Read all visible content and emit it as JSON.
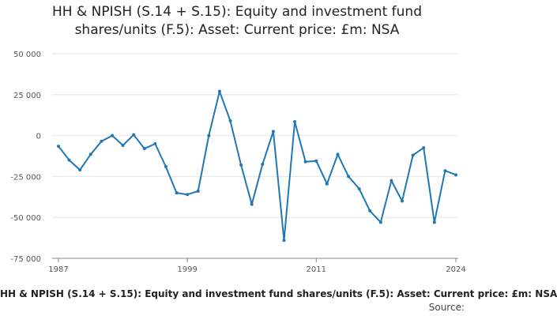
{
  "chart_data": {
    "type": "line",
    "title_lines": [
      "HH & NPISH (S.14 + S.15): Equity and investment fund",
      "shares/units (F.5): Asset: Current price: £m: NSA"
    ],
    "x_label": "HH & NPISH (S.14 + S.15): Equity and investment fund shares/units (F.5): Asset: Current price: £m: NSA",
    "source_label": "Source:",
    "ylim": [
      -75000,
      50000
    ],
    "y_ticks": [
      50000,
      25000,
      0,
      -25000,
      -50000,
      -75000
    ],
    "y_tick_labels": [
      "50 000",
      "25 000",
      "0",
      "-25 000",
      "-50 000",
      "-75 000"
    ],
    "x_tick_years": [
      1987,
      1999,
      2011,
      2024
    ],
    "x_tick_labels": [
      "1987",
      "1999",
      "2011",
      "2024"
    ],
    "grid": true,
    "series_color": "#1f78b4",
    "x": [
      1987,
      1988,
      1989,
      1990,
      1991,
      1992,
      1993,
      1994,
      1995,
      1996,
      1997,
      1998,
      1999,
      2000,
      2001,
      2002,
      2003,
      2004,
      2005,
      2006,
      2007,
      2008,
      2009,
      2010,
      2011,
      2012,
      2013,
      2014,
      2015,
      2016,
      2017,
      2018,
      2019,
      2020,
      2021,
      2022,
      2023,
      2024
    ],
    "values": [
      -6500,
      -15000,
      -21000,
      -11500,
      -3500,
      0,
      -6000,
      500,
      -8000,
      -5000,
      -19000,
      -35000,
      -36000,
      -34000,
      0,
      27000,
      9000,
      -18000,
      -42000,
      -17500,
      2500,
      -64000,
      8500,
      -16000,
      -15500,
      -29500,
      -11500,
      -25000,
      -32500,
      -46000,
      -53000,
      -27500,
      -40000,
      -12000,
      -7500,
      -53000,
      -21500,
      -24000
    ]
  }
}
